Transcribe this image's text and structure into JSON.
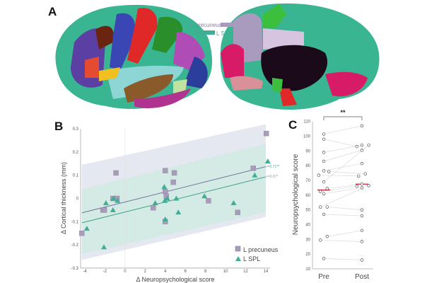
{
  "panels": {
    "a": "A",
    "b": "B",
    "c": "C"
  },
  "brain_labels": {
    "precuneus": "L precuneus",
    "spl": "L SPL"
  },
  "colors": {
    "precuneus": "#a99bbd",
    "spl": "#3fae94",
    "mean": "#cc2233",
    "band_outer": "#e6e8f1",
    "band_inner": "#cfeae3"
  },
  "chart_data": [
    {
      "type": "scatter",
      "title": "",
      "xlabel": "Δ Neuropsychological score",
      "ylabel": "Δ Cortical thickness (mm)",
      "xlim": [
        -4.3,
        14.5
      ],
      "ylim": [
        -0.3,
        0.3
      ],
      "xticks": [
        -4,
        -2,
        0,
        2,
        4,
        6,
        8,
        10,
        12,
        14
      ],
      "yticks": [
        -0.3,
        -0.2,
        -0.1,
        0,
        0.1,
        0.2,
        0.3
      ],
      "legend_position": "bottom-right",
      "series": [
        {
          "name": "L precuneus",
          "marker": "square",
          "r_label": "r=0.71**",
          "fit": [
            [
              -4.3,
              -0.062
            ],
            [
              14,
              0.137
            ]
          ],
          "band": [
            [
              -4.3,
              0.145,
              -0.265
            ],
            [
              14,
              0.32,
              -0.08
            ]
          ],
          "points": [
            [
              -4.3,
              -0.15
            ],
            [
              -2.2,
              -0.05
            ],
            [
              -2.05,
              -0.05
            ],
            [
              -1.2,
              0
            ],
            [
              -0.8,
              0
            ],
            [
              -0.9,
              0.11
            ],
            [
              2.8,
              -0.04
            ],
            [
              4,
              0.12
            ],
            [
              4,
              0.03
            ],
            [
              4.1,
              0.01
            ],
            [
              4.9,
              0.11
            ],
            [
              4.8,
              0.07
            ],
            [
              4,
              -0.1
            ],
            [
              8.3,
              -0.01
            ],
            [
              11.2,
              -0.06
            ],
            [
              12.75,
              0.13
            ],
            [
              14.05,
              0.28
            ]
          ]
        },
        {
          "name": "L SPL",
          "marker": "triangle",
          "r_label": "r=0.67*",
          "fit": [
            [
              -4.3,
              -0.105
            ],
            [
              14,
              0.093
            ]
          ],
          "band": [
            [
              -4.3,
              0.04,
              -0.24
            ],
            [
              14,
              0.235,
              -0.06
            ]
          ],
          "points": [
            [
              -3.8,
              -0.13
            ],
            [
              -2.1,
              -0.21
            ],
            [
              -1.9,
              -0.02
            ],
            [
              -1.2,
              -0.05
            ],
            [
              -1.15,
              0
            ],
            [
              -0.75,
              -0.01
            ],
            [
              3,
              -0.02
            ],
            [
              3.9,
              0.05
            ],
            [
              3.95,
              -0.01
            ],
            [
              4,
              -0.09
            ],
            [
              4.2,
              0
            ],
            [
              5.1,
              0
            ],
            [
              5.3,
              -0.06
            ],
            [
              7.9,
              0.01
            ],
            [
              10.8,
              -0.02
            ],
            [
              12.9,
              0.1
            ],
            [
              14.2,
              0.16
            ]
          ]
        }
      ]
    },
    {
      "type": "scatter",
      "title": "",
      "xlabel": "",
      "ylabel": "Neuropsychological score",
      "categories": [
        "Pre",
        "Post"
      ],
      "ylim": [
        10,
        110
      ],
      "yticks": [
        10,
        20,
        30,
        40,
        50,
        60,
        70,
        80,
        90,
        100,
        110
      ],
      "significance": "**",
      "means": {
        "pre": 63.5,
        "post": 67.5
      },
      "pairs": [
        [
          101.5,
          107
        ],
        [
          98,
          93
        ],
        [
          89,
          94
        ],
        [
          83,
          90.5
        ],
        [
          76.5,
          81.5
        ],
        [
          76,
          74.5
        ],
        [
          73.5,
          73
        ],
        [
          69,
          94
        ],
        [
          64.5,
          67.5
        ],
        [
          62.5,
          66
        ],
        [
          61,
          65
        ],
        [
          52,
          66.5
        ],
        [
          52,
          50
        ],
        [
          47,
          46
        ],
        [
          32,
          36
        ],
        [
          29.5,
          28.5
        ],
        [
          17,
          16
        ]
      ],
      "jitter_pre": [
        0,
        0,
        0,
        0,
        0,
        0.6,
        -0.6,
        0,
        0.4,
        -0.4,
        0,
        -0.4,
        0.4,
        0,
        0.4,
        -0.4,
        0
      ],
      "jitter_post": [
        0,
        -0.6,
        0,
        0,
        0,
        0.4,
        -0.4,
        0.8,
        0,
        -0.6,
        0,
        0.8,
        0,
        0,
        0,
        0,
        0
      ]
    }
  ]
}
